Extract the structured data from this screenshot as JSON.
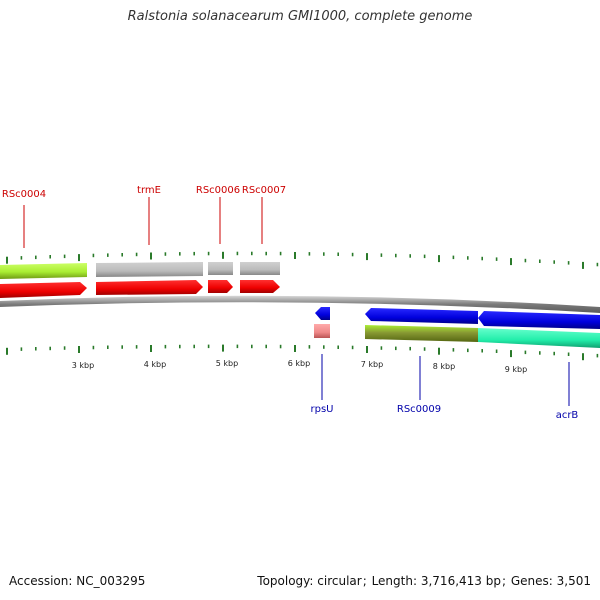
{
  "title": "Ralstonia solanacearum GMI1000, complete genome",
  "footer": {
    "accession_label": "Accession:",
    "accession": "NC_003295",
    "topology_label": "Topology:",
    "topology": "circular",
    "length_label": "Length:",
    "length": "3,716,413 bp",
    "genes_label": "Genes:",
    "genes": "3,501"
  },
  "colors": {
    "top_label": "#cc0000",
    "bottom_label": "#0000aa",
    "tick": "#2a7a2a",
    "backbone": "#888888",
    "cds_red": "#ee0000",
    "cds_blue": "#0000dd",
    "lime": "#aaee33",
    "olive": "#778822",
    "gray_feature": "#bbbbbb",
    "teal_feature": "#22eeaa",
    "pink_feature": "#ee8888"
  },
  "scale_labels": [
    {
      "text": "3 kbp",
      "kbp": 3
    },
    {
      "text": "4 kbp",
      "kbp": 4
    },
    {
      "text": "5 kbp",
      "kbp": 5
    },
    {
      "text": "6 kbp",
      "kbp": 6
    },
    {
      "text": "7 kbp",
      "kbp": 7
    },
    {
      "text": "8 kbp",
      "kbp": 8
    },
    {
      "text": "9 kbp",
      "kbp": 9
    }
  ],
  "genes_top": [
    {
      "name": "RSc0004"
    },
    {
      "name": "trmE"
    },
    {
      "name": "RSc0006"
    },
    {
      "name": "RSc0007"
    }
  ],
  "genes_bottom": [
    {
      "name": "rpsU"
    },
    {
      "name": "RSc0009"
    },
    {
      "name": "acrB"
    }
  ]
}
